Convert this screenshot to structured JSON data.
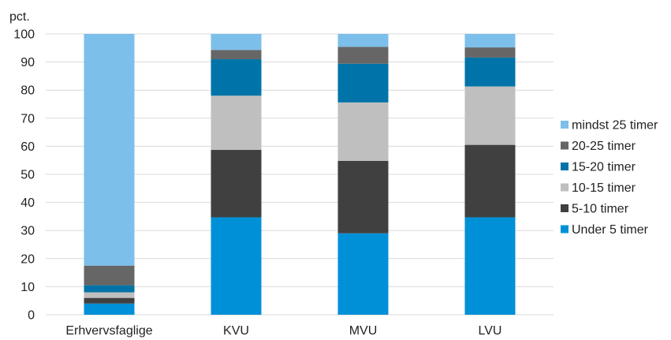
{
  "chart_data": {
    "type": "bar",
    "stacked": true,
    "ylabel": "pct.",
    "ylim": [
      0,
      100
    ],
    "yticks": [
      0,
      10,
      20,
      30,
      40,
      50,
      60,
      70,
      80,
      90,
      100
    ],
    "grid": true,
    "legend_position": "right",
    "categories": [
      "Erhvervsfaglige",
      "KVU",
      "MVU",
      "LVU"
    ],
    "series": [
      {
        "name": "Under 5 timer",
        "color": "#0090d8",
        "values": [
          4,
          34.7,
          29,
          34.7
        ]
      },
      {
        "name": "5-10 timer",
        "color": "#404040",
        "values": [
          2,
          24,
          25.8,
          25.8
        ]
      },
      {
        "name": "10-15 timer",
        "color": "#bfbfbf",
        "values": [
          2,
          19.3,
          20.8,
          20.8
        ]
      },
      {
        "name": "15-20 timer",
        "color": "#0073a8",
        "values": [
          2.5,
          13,
          13.8,
          10.3
        ]
      },
      {
        "name": "20-25 timer",
        "color": "#666666",
        "values": [
          7,
          3.3,
          6,
          3.6
        ]
      },
      {
        "name": "mindst 25 timer",
        "color": "#7cbfea",
        "values": [
          82.5,
          5.7,
          4.6,
          4.8
        ]
      }
    ]
  }
}
